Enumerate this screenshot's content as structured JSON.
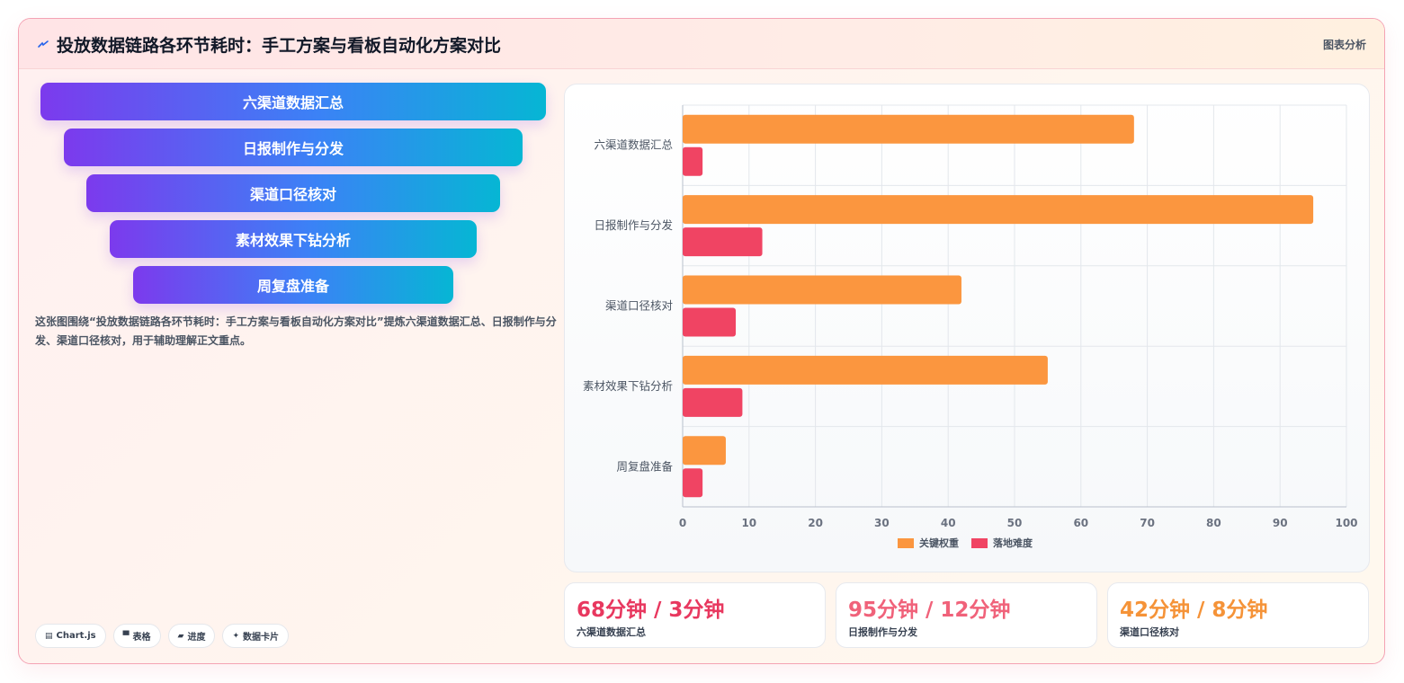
{
  "header": {
    "title": "投放数据链路各环节耗时：手工方案与看板自动化方案对比",
    "right_label": "图表分析"
  },
  "funnel": {
    "items": [
      "六渠道数据汇总",
      "日报制作与分发",
      "渠道口径核对",
      "素材效果下钻分析",
      "周复盘准备"
    ]
  },
  "description": "这张图围绕“投放数据链路各环节耗时：手工方案与看板自动化方案对比”提炼六渠道数据汇总、日报制作与分发、渠道口径核对，用于辅助理解正文重点。",
  "tags": [
    {
      "icon": "chart-icon",
      "label": "Chart.js"
    },
    {
      "icon": "table-icon",
      "label": "表格"
    },
    {
      "icon": "progress-icon",
      "label": "进度"
    },
    {
      "icon": "sparkle-icon",
      "label": "数据卡片"
    }
  ],
  "stats": [
    {
      "value": "68分钟 / 3分钟",
      "label": "六渠道数据汇总",
      "color": "#e8385f"
    },
    {
      "value": "95分钟 / 12分钟",
      "label": "日报制作与分发",
      "color": "#f0627a"
    },
    {
      "value": "42分钟 / 8分钟",
      "label": "渠道口径核对",
      "color": "#f59338"
    }
  ],
  "chart_data": {
    "type": "bar",
    "orientation": "horizontal",
    "categories": [
      "六渠道数据汇总",
      "日报制作与分发",
      "渠道口径核对",
      "素材效果下钻分析",
      "周复盘准备"
    ],
    "series": [
      {
        "name": "关键权重",
        "values": [
          68,
          95,
          42,
          55,
          6.5
        ],
        "color": "#fb963f"
      },
      {
        "name": "落地难度",
        "values": [
          3,
          12,
          8,
          9,
          3
        ],
        "color": "#f04463"
      }
    ],
    "xlim": [
      0,
      100
    ],
    "xticks": [
      0,
      10,
      20,
      30,
      40,
      50,
      60,
      70,
      80,
      90,
      100
    ],
    "grid": true,
    "legend": "bottom"
  }
}
